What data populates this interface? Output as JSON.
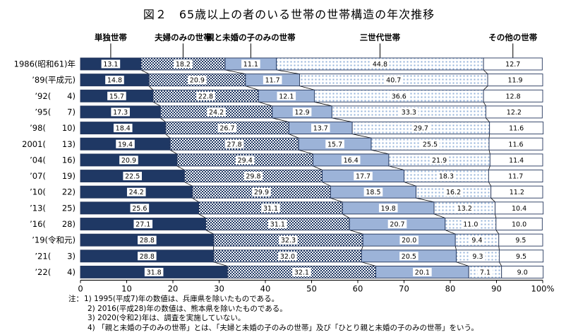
{
  "title": "図２　65歳以上の者のいる世帯の世帯構造の年次推移",
  "colors": {
    "navy": "#1f3864",
    "light_blue": "#9cb3d8",
    "dot_blue": "#93b2d9",
    "outline": "#24365c",
    "line": "#000000",
    "text": "#000000",
    "white": "#ffffff"
  },
  "chart_data": {
    "type": "bar",
    "stacked": true,
    "orientation": "horizontal",
    "unit": "%",
    "xlim": [
      0,
      100
    ],
    "grid": false,
    "legend_position": "top",
    "categories": [
      "1986(昭和61)年",
      "’89(平成元)",
      "’92(　　4)",
      "’95(　　7)",
      "’98(　　10)",
      "2001(　　13)",
      "’04(　　16)",
      "’07(　　19)",
      "’10(　　22)",
      "’13(　　25)",
      "’16(　　28)",
      "’19(令和元)",
      "’21(　　3)",
      "’22(　　4)"
    ],
    "series": [
      {
        "name": "単独世帯",
        "pattern": "solid-navy",
        "values": [
          13.1,
          14.8,
          15.7,
          17.3,
          18.4,
          19.4,
          20.9,
          22.5,
          24.2,
          25.6,
          27.1,
          28.8,
          28.8,
          31.8
        ]
      },
      {
        "name": "夫婦のみの世帯",
        "pattern": "checker",
        "values": [
          18.2,
          20.9,
          22.8,
          24.2,
          26.7,
          27.8,
          29.4,
          29.8,
          29.9,
          31.1,
          31.1,
          32.3,
          32.0,
          32.1
        ]
      },
      {
        "name": "親と未婚の子のみの世帯",
        "pattern": "solid-lightblue",
        "values": [
          11.1,
          11.7,
          12.1,
          12.9,
          13.7,
          15.7,
          16.4,
          17.7,
          18.5,
          19.8,
          20.7,
          20.0,
          20.5,
          20.1
        ]
      },
      {
        "name": "三世代世帯",
        "pattern": "dots",
        "values": [
          44.8,
          40.7,
          36.6,
          33.3,
          29.7,
          25.5,
          21.9,
          18.3,
          16.2,
          13.2,
          11.0,
          9.4,
          9.3,
          7.1
        ]
      },
      {
        "name": "その他の世帯",
        "pattern": "plain",
        "values": [
          12.7,
          11.9,
          12.8,
          12.2,
          11.6,
          11.6,
          11.4,
          11.7,
          11.2,
          10.4,
          10.0,
          9.5,
          9.5,
          9.0
        ]
      }
    ],
    "x_ticks": [
      "0",
      "10",
      "20",
      "30",
      "40",
      "50",
      "60",
      "70",
      "80",
      "90",
      "100%"
    ]
  },
  "notes": {
    "prefix": "注：",
    "items": [
      "1)  1995(平成7)年の数値は、兵庫県を除いたものである。",
      "2)  2016(平成28)年の数値は、熊本県を除いたものである。",
      "3)  2020(令和2)年は、調査を実施していない。",
      "4)  「親と未婚の子のみの世帯」とは、「夫婦と未婚の子のみの世帯」及び「ひとり親と未婚の子のみの世帯」をいう。"
    ]
  }
}
